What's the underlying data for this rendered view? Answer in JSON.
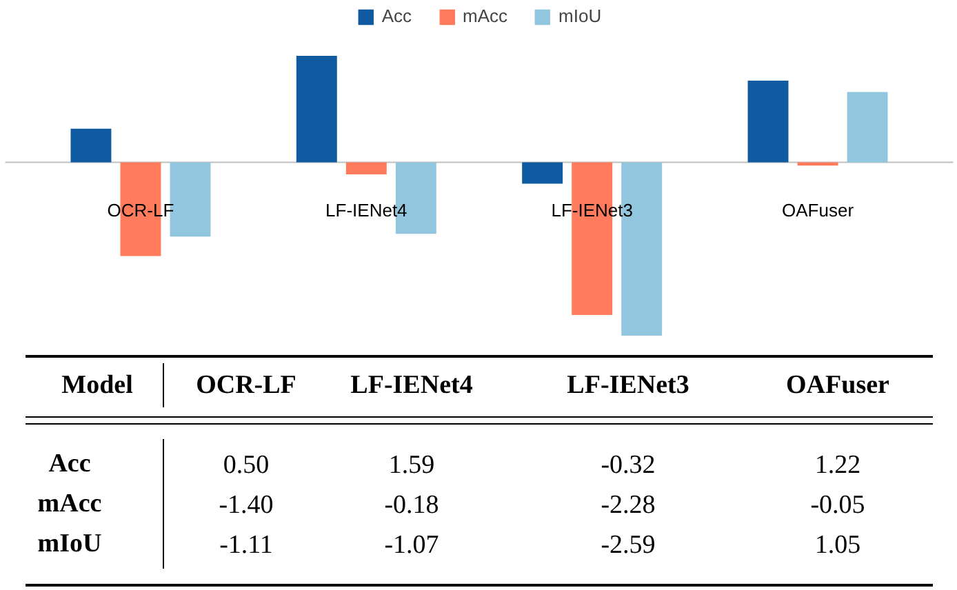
{
  "chart_data": {
    "type": "bar",
    "tick_labels": false,
    "legend": "top",
    "grid": false,
    "categories": [
      "OCR-LF",
      "LF-IENet4",
      "LF-IENet3",
      "OAFuser"
    ],
    "xlabel": "Model",
    "series": [
      {
        "name": "Acc",
        "color": "#0f5aa0",
        "values": [
          0.5,
          1.59,
          -0.32,
          1.22
        ],
        "value_labels": [
          "0.50",
          "1.59",
          "-0.32",
          "1.22"
        ]
      },
      {
        "name": "mAcc",
        "color": "#ff7b5c",
        "values": [
          -1.4,
          -0.18,
          -2.28,
          -0.05
        ],
        "value_labels": [
          "-1.40",
          "-0.18",
          "-2.28",
          "-0.05"
        ]
      },
      {
        "name": "mIoU",
        "color": "#92c5de",
        "values": [
          -1.11,
          -1.07,
          -2.59,
          1.05
        ],
        "value_labels": [
          "-1.11",
          "-1.07",
          "-2.59",
          "1.05"
        ]
      }
    ]
  }
}
